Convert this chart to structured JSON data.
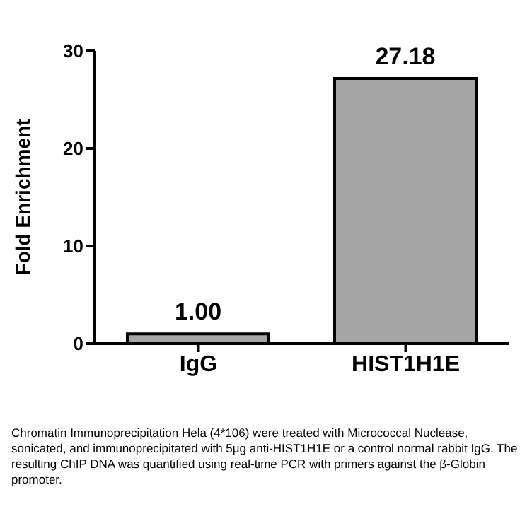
{
  "chart_data": {
    "type": "bar",
    "ylabel": "Fold Enrichment",
    "categories": [
      "IgG",
      "HIST1H1E"
    ],
    "values": [
      1.0,
      27.18
    ],
    "value_labels": [
      "1.00",
      "27.18"
    ],
    "color": "#a6a6a6",
    "ylim": [
      0,
      30
    ],
    "yticks": [
      0,
      10,
      20,
      30
    ],
    "grid": false,
    "annotations": [
      "Chromatin Immunoprecipitation Hela (4*106) were treated with Micrococcal Nuclease, sonicated, and immunoprecipitated with 5μg anti-HIST1H1E or a control normal rabbit IgG. The resulting ChIP DNA was quantified using real-time PCR with primers against the β-Globin promoter."
    ]
  }
}
